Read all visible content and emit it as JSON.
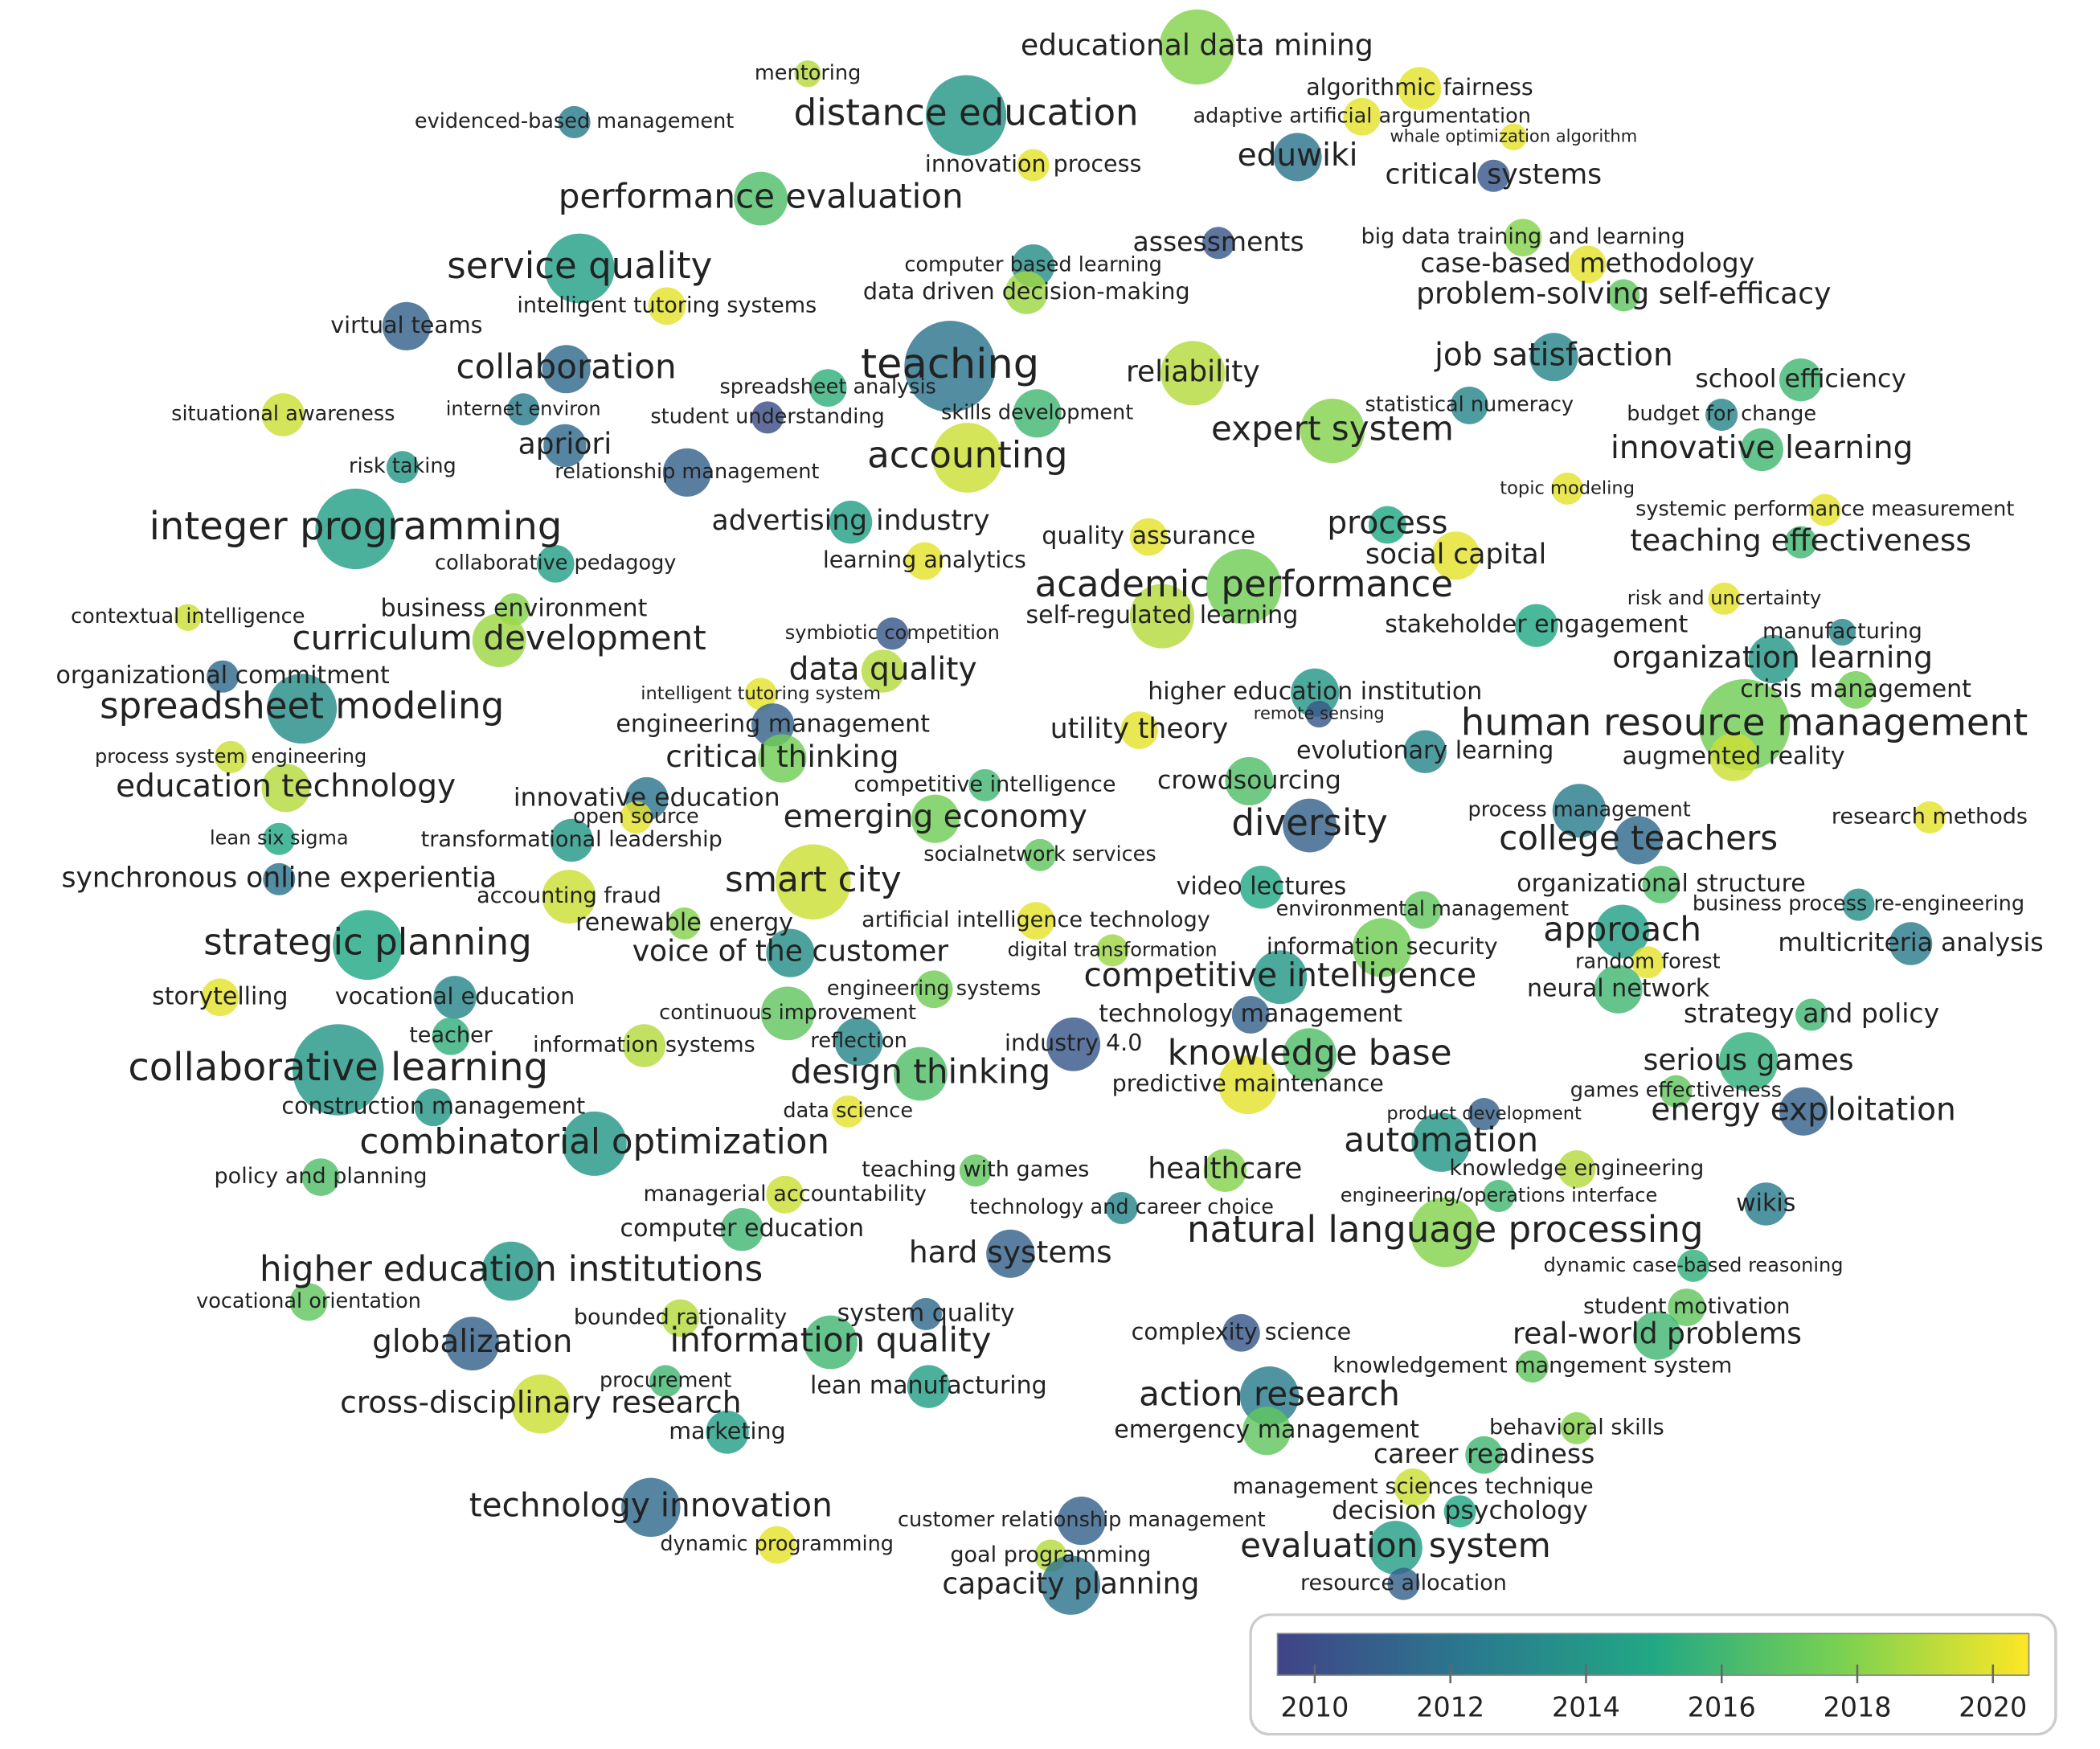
{
  "nodes": [
    {
      "label": "mentoring",
      "year": 2019
    },
    {
      "label": "educational data mining",
      "year": 2018
    },
    {
      "label": "algorithmic fairness",
      "year": 2020
    },
    {
      "label": "evidenced-based management",
      "year": 2012.5
    },
    {
      "label": "distance education",
      "year": 2014
    },
    {
      "label": "adaptive artificial argumentation",
      "year": 2020
    },
    {
      "label": "whale optimization algorithm",
      "year": 2020
    },
    {
      "label": "eduwiki",
      "year": 2012
    },
    {
      "label": "innovation process",
      "year": 2020
    },
    {
      "label": "critical systems",
      "year": 2010.5
    },
    {
      "label": "performance evaluation",
      "year": 2016.5
    },
    {
      "label": "assessments",
      "year": 2010.5
    },
    {
      "label": "big data training and learning",
      "year": 2018
    },
    {
      "label": "service quality",
      "year": 2014.5
    },
    {
      "label": "computer based learning",
      "year": 2013.5
    },
    {
      "label": "case-based methodology",
      "year": 2020
    },
    {
      "label": "intelligent tutoring systems",
      "year": 2020
    },
    {
      "label": "data driven decision-making",
      "year": 2018.5
    },
    {
      "label": "problem-solving self-efficacy",
      "year": 2017
    },
    {
      "label": "virtual teams",
      "year": 2011
    },
    {
      "label": "collaboration",
      "year": 2011.5
    },
    {
      "label": "teaching",
      "year": 2012
    },
    {
      "label": "reliability",
      "year": 2019
    },
    {
      "label": "job satisfaction",
      "year": 2013
    },
    {
      "label": "spreadsheet analysis",
      "year": 2015.5
    },
    {
      "label": "school efficiency",
      "year": 2016
    },
    {
      "label": "situational awareness",
      "year": 2019.5
    },
    {
      "label": "internet environ",
      "year": 2012.5
    },
    {
      "label": "student understanding",
      "year": 2010
    },
    {
      "label": "skills development",
      "year": 2016
    },
    {
      "label": "statistical numeracy",
      "year": 2013
    },
    {
      "label": "budget for change",
      "year": 2013
    },
    {
      "label": "expert system",
      "year": 2018
    },
    {
      "label": "apriori",
      "year": 2011.5
    },
    {
      "label": "innovative learning",
      "year": 2016
    },
    {
      "label": "risk taking",
      "year": 2014
    },
    {
      "label": "relationship management",
      "year": 2011
    },
    {
      "label": "accounting",
      "year": 2019.5
    },
    {
      "label": "topic modeling",
      "year": 2020
    },
    {
      "label": "systemic performance measurement",
      "year": 2020
    },
    {
      "label": "integer programming",
      "year": 2014.5
    },
    {
      "label": "advertising industry",
      "year": 2014.5
    },
    {
      "label": "process",
      "year": 2015
    },
    {
      "label": "quality assurance",
      "year": 2020
    },
    {
      "label": "teaching effectiveness",
      "year": 2016
    },
    {
      "label": "collaborative pedagogy",
      "year": 2014.5
    },
    {
      "label": "learning analytics",
      "year": 2020
    },
    {
      "label": "social capital",
      "year": 2020
    },
    {
      "label": "academic performance",
      "year": 2017.5
    },
    {
      "label": "contextual intelligence",
      "year": 2019.5
    },
    {
      "label": "business environment",
      "year": 2018
    },
    {
      "label": "risk and uncertainty",
      "year": 2020
    },
    {
      "label": "self-regulated learning",
      "year": 2019
    },
    {
      "label": "curriculum development",
      "year": 2018.5
    },
    {
      "label": "symbiotic competition",
      "year": 2010.5
    },
    {
      "label": "stakeholder engagement",
      "year": 2015
    },
    {
      "label": "manufacturing",
      "year": 2013
    },
    {
      "label": "organizational commitment",
      "year": 2011.5
    },
    {
      "label": "data quality",
      "year": 2019
    },
    {
      "label": "organization learning",
      "year": 2014
    },
    {
      "label": "higher education institution",
      "year": 2014
    },
    {
      "label": "intelligent tutoring system",
      "year": 2020
    },
    {
      "label": "spreadsheet modeling",
      "year": 2013.5
    },
    {
      "label": "crisis management",
      "year": 2017.5
    },
    {
      "label": "remote sensing",
      "year": 2010.5
    },
    {
      "label": "engineering management",
      "year": 2011
    },
    {
      "label": "utility theory",
      "year": 2020
    },
    {
      "label": "human resource management",
      "year": 2017.5
    },
    {
      "label": "evolutionary learning",
      "year": 2013
    },
    {
      "label": "process system engineering",
      "year": 2019.5
    },
    {
      "label": "critical thinking",
      "year": 2017.5
    },
    {
      "label": "augmented reality",
      "year": 2019.5
    },
    {
      "label": "education technology",
      "year": 2019
    },
    {
      "label": "competitive intelligence",
      "year": 2016
    },
    {
      "label": "crowdsourcing",
      "year": 2016.5
    },
    {
      "label": "innovative education",
      "year": 2012
    },
    {
      "label": "open source",
      "year": 2020
    },
    {
      "label": "emerging economy",
      "year": 2017.5
    },
    {
      "label": "diversity",
      "year": 2011
    },
    {
      "label": "process management",
      "year": 2012.5
    },
    {
      "label": "research methods",
      "year": 2020
    },
    {
      "label": "lean six sigma",
      "year": 2015
    },
    {
      "label": "transformational leadership",
      "year": 2014
    },
    {
      "label": "college teachers",
      "year": 2011.5
    },
    {
      "label": "socialnetwork services",
      "year": 2017
    },
    {
      "label": "synchronous online experientia",
      "year": 2012
    },
    {
      "label": "smart city",
      "year": 2019.5
    },
    {
      "label": "video lectures",
      "year": 2015
    },
    {
      "label": "organizational structure",
      "year": 2016.5
    },
    {
      "label": "accounting fraud",
      "year": 2019.5
    },
    {
      "label": "business process re-engineering",
      "year": 2013.5
    },
    {
      "label": "environmental management",
      "year": 2017
    },
    {
      "label": "renewable energy",
      "year": 2018
    },
    {
      "label": "artificial intelligence technology",
      "year": 2020
    },
    {
      "label": "approach",
      "year": 2014.5
    },
    {
      "label": "strategic planning",
      "year": 2015
    },
    {
      "label": "multicriteria analysis",
      "year": 2012.5
    },
    {
      "label": "digital transformation",
      "year": 2018.5
    },
    {
      "label": "information security",
      "year": 2017.5
    },
    {
      "label": "voice of the customer",
      "year": 2013.5
    },
    {
      "label": "random forest",
      "year": 2020
    },
    {
      "label": "competitive intelligence",
      "year": 2014
    },
    {
      "label": "neural network",
      "year": 2016
    },
    {
      "label": "storytelling",
      "year": 2020
    },
    {
      "label": "vocational education",
      "year": 2013
    },
    {
      "label": "engineering systems",
      "year": 2017.5
    },
    {
      "label": "continuous improvement",
      "year": 2017
    },
    {
      "label": "technology management",
      "year": 2011
    },
    {
      "label": "strategy and policy",
      "year": 2016
    },
    {
      "label": "teacher",
      "year": 2015.5
    },
    {
      "label": "industry 4.0",
      "year": 2010.5
    },
    {
      "label": "information systems",
      "year": 2019
    },
    {
      "label": "reflection",
      "year": 2013
    },
    {
      "label": "knowledge base",
      "year": 2016.5
    },
    {
      "label": "serious games",
      "year": 2015.5
    },
    {
      "label": "collaborative learning",
      "year": 2014
    },
    {
      "label": "design thinking",
      "year": 2016.5
    },
    {
      "label": "predictive maintenance",
      "year": 2020
    },
    {
      "label": "games effectiveness",
      "year": 2017
    },
    {
      "label": "construction management",
      "year": 2014
    },
    {
      "label": "data science",
      "year": 2020
    },
    {
      "label": "product development",
      "year": 2011
    },
    {
      "label": "energy exploitation",
      "year": 2011
    },
    {
      "label": "combinatorial optimization",
      "year": 2014
    },
    {
      "label": "automation",
      "year": 2014
    },
    {
      "label": "policy and planning",
      "year": 2016.5
    },
    {
      "label": "teaching with games",
      "year": 2017
    },
    {
      "label": "healthcare",
      "year": 2018
    },
    {
      "label": "knowledge engineering",
      "year": 2019
    },
    {
      "label": "managerial accountability",
      "year": 2019.5
    },
    {
      "label": "engineering/operations interface",
      "year": 2016
    },
    {
      "label": "wikis",
      "year": 2012.5
    },
    {
      "label": "technology and career choice",
      "year": 2013
    },
    {
      "label": "computer education",
      "year": 2016
    },
    {
      "label": "natural language processing",
      "year": 2018
    },
    {
      "label": "hard systems",
      "year": 2011
    },
    {
      "label": "higher education institutions",
      "year": 2014
    },
    {
      "label": "dynamic case-based reasoning",
      "year": 2015.5
    },
    {
      "label": "vocational orientation",
      "year": 2017
    },
    {
      "label": "student motivation",
      "year": 2017
    },
    {
      "label": "bounded rationality",
      "year": 2019
    },
    {
      "label": "system quality",
      "year": 2011.5
    },
    {
      "label": "complexity science",
      "year": 2010.5
    },
    {
      "label": "globalization",
      "year": 2011
    },
    {
      "label": "information quality",
      "year": 2016
    },
    {
      "label": "real-world problems",
      "year": 2016
    },
    {
      "label": "knowledgement mangement system",
      "year": 2017
    },
    {
      "label": "procurement",
      "year": 2016
    },
    {
      "label": "lean manufacturing",
      "year": 2014.5
    },
    {
      "label": "cross-disciplinary research",
      "year": 2019.5
    },
    {
      "label": "action research",
      "year": 2012.5
    },
    {
      "label": "marketing",
      "year": 2014.5
    },
    {
      "label": "emergency management",
      "year": 2017
    },
    {
      "label": "behavioral skills",
      "year": 2018
    },
    {
      "label": "career readiness",
      "year": 2016
    },
    {
      "label": "technology innovation",
      "year": 2011.5
    },
    {
      "label": "management sciences technique",
      "year": 2019.5
    },
    {
      "label": "decision psychology",
      "year": 2015
    },
    {
      "label": "customer relationship management",
      "year": 2011
    },
    {
      "label": "dynamic programming",
      "year": 2020
    },
    {
      "label": "evaluation system",
      "year": 2014.5
    },
    {
      "label": "goal programming",
      "year": 2019
    },
    {
      "label": "capacity planning",
      "year": 2012
    },
    {
      "label": "resource allocation",
      "year": 2011
    }
  ],
  "colorbar": {
    "lim": [
      2009.45,
      2020.53
    ],
    "ticks": [
      2010,
      2012,
      2014,
      2016,
      2018,
      2020
    ]
  }
}
